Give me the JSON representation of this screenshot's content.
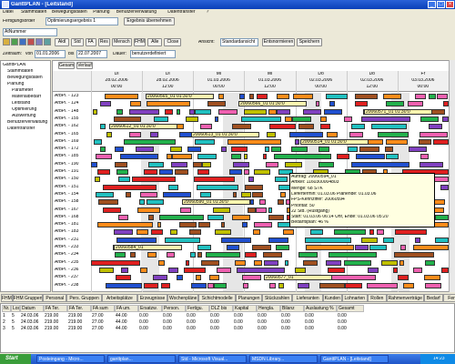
{
  "window": {
    "title": "GanttPLAN - [Leitstand]"
  },
  "menu": [
    "Datei",
    "Stammdaten",
    "Bewegungsdaten",
    "Planung",
    "Benutzerverwaltung",
    "Datentransfer",
    "?"
  ],
  "toolbar": {
    "order_label": "Fertigungsorder",
    "order_select": "Optimierungsergebnis 1",
    "apply": "Ergebnis übernehmen",
    "filter_select": "AtNummer",
    "buttons": [
      "Aktl",
      "Std",
      "FA",
      "Res",
      "Mensch",
      "FHM",
      "Alle",
      "Close"
    ],
    "view_label": "Ansicht:",
    "view_select": "Standardansicht",
    "buttons2": [
      "Entsnormieren",
      "Speichern"
    ],
    "period_label": "Zeitraum:",
    "from_label": "von",
    "from": "01.01.2006",
    "to_label": "bis",
    "to": "22.07.2007",
    "duration_label": "Dauer:",
    "duration": "benutzerdefiniert"
  },
  "tree": [
    "GanttPLAN",
    "Stammdaten",
    "Bewegungsdaten",
    "Planung",
    "Parameter",
    "Materialbedarf",
    "Leitstand",
    "Optimierung",
    "Auswertung",
    "Benutzerverwaltung",
    "Datentransfer"
  ],
  "gantt": {
    "tabs": [
      "Gesamt",
      "Verlauf"
    ],
    "timeline": [
      [
        "Di",
        "28.02.2006",
        "00:00"
      ],
      [
        "Di",
        "28.02.2006",
        "12:00"
      ],
      [
        "Mi",
        "01.03.2006",
        "00:00"
      ],
      [
        "Mi",
        "01.03.2006",
        "12:00"
      ],
      [
        "Do",
        "02.03.2006",
        "00:00"
      ],
      [
        "Do",
        "02.03.2006",
        "12:00"
      ],
      [
        "Fr",
        "03.03.2006",
        "00:00"
      ]
    ],
    "rows": [
      "ArbPl. - 123",
      "ArbPl. - 124",
      "ArbPl. - 148",
      "ArbPl. - 155",
      "ArbPl. - 162",
      "ArbPl. - 165",
      "ArbPl. - 169",
      "ArbPl. - 172",
      "ArbPl. - 185",
      "ArbPl. - 190",
      "ArbPl. - 191",
      "ArbPl. - 150",
      "ArbPl. - 151",
      "ArbPl. - 154",
      "ArbPl. - 158",
      "ArbPl. - 167",
      "ArbPl. - 168",
      "ArbPl. - 181",
      "ArbPl. - 183",
      "ArbPl. - 231",
      "ArbPl. - 233",
      "ArbPl. - 234",
      "ArbPl. - 235",
      "ArbPl. - 236",
      "ArbPl. - 237",
      "ArbPl. - 238"
    ],
    "bar_labels": [
      "20060565_01 01:30:0",
      "20060566_01 01:30:0",
      "20060612_01 01:30:0",
      "20060613_01 01:30:0",
      "20060514_01 01:30:0",
      "20060571_01 01:30:0",
      "20060584_01",
      "20060577_01",
      "20060590_01 01:30:0"
    ],
    "tooltip": [
      "Auftrag: 20060594_01",
      "Artikel: 1160300004803",
      "Menge: 68 STK",
      "Liefertermin: 01.03.06 Planende: 01.03.06",
      "FPS-Kennziffer: 20060594",
      "Priorität: 50",
      "22 Std. (Rüstgang)",
      "Start: 01.03.06 06:14 Uhr, Ende: 01.03.06 05:20",
      "Bedarfsplan: 46 %"
    ]
  },
  "bottom_tabs": [
    "FHM",
    "FHM Gruppen",
    "Personal",
    "Pers. Gruppen",
    "Arbeitsplätze",
    "Erzeugnisse",
    "Wochenpläne",
    "Schichtmodelle",
    "Planungen",
    "Stückzahlen",
    "Lieferanten",
    "Kunden",
    "Lohnarten",
    "Rollen",
    "Rahmenverträge",
    "Bedarf",
    "Fert. aufträge",
    "Ergebnisse"
  ],
  "table": {
    "columns": [
      "Nr.",
      "Los",
      "Datum",
      "FA Ter.",
      "FA Ter.",
      "FA sum",
      "FA um.",
      "Ersatzw.",
      "Person.",
      "Fertigu.",
      "DLZ bis",
      "Kapital",
      "Hengla.",
      "Bilanz",
      "Auslastung %",
      "Gesamt"
    ],
    "rows": [
      [
        "1",
        "5",
        "24.03.06",
        "219.00",
        "219.00",
        "27.00",
        "44.00",
        "0.00",
        "0.00",
        "0.00",
        "0.00",
        "0.00",
        "0.00",
        "0.00",
        "0.00",
        "0.00"
      ],
      [
        "2",
        "5",
        "24.03.06",
        "219.00",
        "219.00",
        "27.00",
        "44.00",
        "0.00",
        "0.00",
        "0.00",
        "0.00",
        "0.00",
        "0.00",
        "0.00",
        "0.00",
        "0.00"
      ],
      [
        "3",
        "5",
        "24.03.06",
        "219.00",
        "219.00",
        "27.00",
        "44.00",
        "0.00",
        "0.00",
        "0.00",
        "0.00",
        "0.00",
        "0.00",
        "0.00",
        "0.00",
        "0.00"
      ]
    ]
  },
  "taskbar": {
    "start": "Start",
    "items": [
      "Posteingang - Micro...",
      "ganttplan...",
      "Std - Microsoft Visual...",
      "MSDN Library...",
      "GanttPLAN - [Leitstand]"
    ],
    "clock": "14:23"
  }
}
